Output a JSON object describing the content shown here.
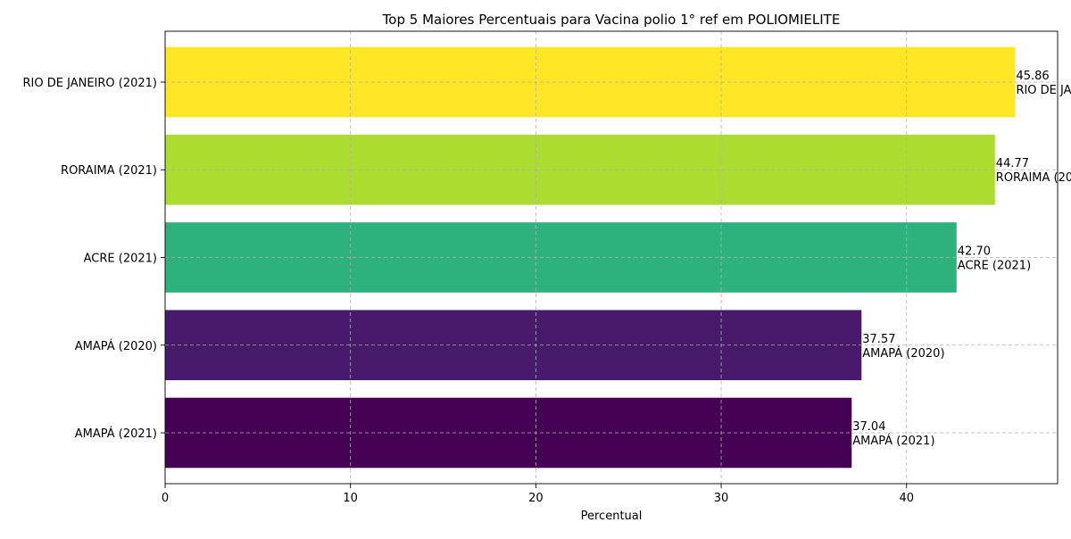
{
  "chart_data": {
    "type": "bar",
    "orientation": "horizontal",
    "title": "Top 5 Maiores Percentuais para Vacina polio 1° ref em POLIOMIELITE",
    "xlabel": "Percentual",
    "ylabel": "",
    "xlim": [
      0,
      48.15
    ],
    "xticks": [
      "0",
      "10",
      "20",
      "30",
      "40"
    ],
    "xtick_values": [
      0,
      10,
      20,
      30,
      40
    ],
    "grid": true,
    "categories": [
      "AMAPÁ (2021)",
      "AMAPÁ (2020)",
      "ACRE (2021)",
      "RORAIMA (2021)",
      "RIO DE JANEIRO (2021)"
    ],
    "values": [
      37.04,
      37.57,
      42.7,
      44.77,
      45.86
    ],
    "value_labels": [
      "37.04",
      "37.57",
      "42.70",
      "44.77",
      "45.86"
    ],
    "colors": [
      "#440154",
      "#481a6c",
      "#2db27d",
      "#addc30",
      "#fde725"
    ]
  }
}
